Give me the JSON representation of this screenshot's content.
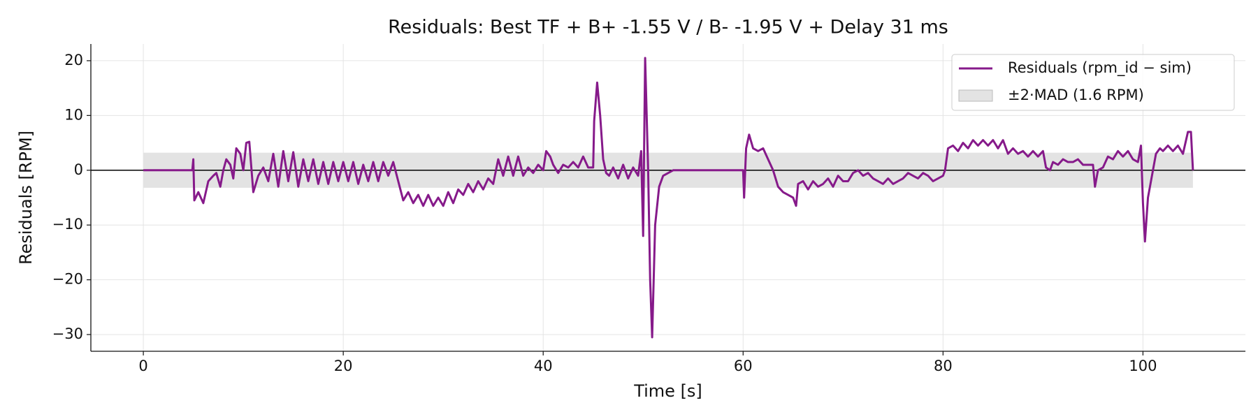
{
  "chart_data": {
    "type": "line",
    "title": "Residuals: Best TF + B+ -1.55 V / B- -1.95 V + Delay 31 ms",
    "xlabel": "Time [s]",
    "ylabel": "Residuals [RPM]",
    "xlim": [
      -5.25,
      110.25
    ],
    "ylim": [
      -33.05,
      23.05
    ],
    "xticks": [
      0,
      20,
      40,
      60,
      80,
      100
    ],
    "yticks": [
      {
        "value": -30,
        "label": "−30"
      },
      {
        "value": -20,
        "label": "−20"
      },
      {
        "value": -10,
        "label": "−10"
      },
      0,
      10,
      20
    ],
    "grid": true,
    "legend": "upper right",
    "hline": 0,
    "band": {
      "name": "±2·MAD (1.6 RPM)",
      "lower": -3.2,
      "upper": 3.2,
      "x": [
        0,
        105
      ],
      "color": "#e3e3e3"
    },
    "x": [
      0,
      4.8,
      4.9,
      5.0,
      5.1,
      5.5,
      6,
      6.5,
      7,
      7.3,
      7.7,
      8,
      8.3,
      8.7,
      9,
      9.3,
      9.7,
      10,
      10.3,
      10.6,
      11,
      11.5,
      12,
      12.5,
      13,
      13.5,
      14,
      14.5,
      15,
      15.5,
      16,
      16.5,
      17,
      17.5,
      18,
      18.5,
      19,
      19.5,
      20,
      20.5,
      21,
      21.5,
      22,
      22.5,
      23,
      23.5,
      24,
      24.5,
      25,
      25.5,
      26,
      26.5,
      27,
      27.5,
      28,
      28.5,
      29,
      29.5,
      30,
      30.5,
      31,
      31.5,
      32,
      32.5,
      33,
      33.5,
      34,
      34.5,
      35,
      35.5,
      36,
      36.5,
      37,
      37.5,
      38,
      38.5,
      39,
      39.5,
      40,
      40.3,
      40.7,
      41,
      41.5,
      42,
      42.5,
      43,
      43.5,
      44,
      44.5,
      45,
      45.1,
      45.4,
      45.7,
      46,
      46.3,
      46.6,
      47,
      47.5,
      48,
      48.5,
      49,
      49.5,
      49.8,
      50,
      50.2,
      50.5,
      50.7,
      50.9,
      51.2,
      51.6,
      52,
      53,
      60,
      60.1,
      60.3,
      60.6,
      61,
      61.5,
      62,
      62.5,
      63,
      63.5,
      64,
      64.5,
      65,
      65.3,
      65.5,
      66,
      66.5,
      67,
      67.5,
      68,
      68.5,
      69,
      69.5,
      70,
      70.5,
      71,
      71.5,
      72,
      72.5,
      73,
      73.5,
      74,
      74.5,
      75,
      75.5,
      76,
      76.5,
      77,
      77.5,
      78,
      78.5,
      79,
      79.5,
      80,
      80.2,
      80.5,
      81,
      81.5,
      82,
      82.5,
      83,
      83.5,
      84,
      84.5,
      85,
      85.5,
      86,
      86.5,
      87,
      87.5,
      88,
      88.5,
      89,
      89.5,
      90,
      90.3,
      90.7,
      91,
      91.5,
      92,
      92.5,
      93,
      93.5,
      94,
      95,
      95.2,
      95.5,
      96,
      96.5,
      97,
      97.5,
      98,
      98.5,
      99,
      99.5,
      99.8,
      100,
      100.2,
      100.5,
      100.8,
      101,
      101.3,
      101.7,
      102,
      102.5,
      103,
      103.5,
      104,
      104.5,
      104.8,
      105
    ],
    "series": [
      {
        "name": "Residuals (rpm_id − sim)",
        "color": "#861a8a",
        "values": [
          0,
          0,
          0,
          2,
          -5.5,
          -4,
          -6,
          -2,
          -1,
          -0.5,
          -3,
          0,
          2,
          1,
          -1.5,
          4,
          3,
          0,
          5,
          5.2,
          -4,
          -1,
          0.5,
          -2,
          3,
          -3,
          3.5,
          -2,
          3.3,
          -3,
          2,
          -2,
          2,
          -2.5,
          1.5,
          -2.5,
          1.5,
          -2,
          1.5,
          -2,
          1.5,
          -2.5,
          1,
          -2,
          1.5,
          -2,
          1.5,
          -1,
          1.5,
          -2,
          -5.5,
          -4,
          -6,
          -4.5,
          -6.5,
          -4.5,
          -6.5,
          -5,
          -6.5,
          -4,
          -6,
          -3.5,
          -4.5,
          -2.5,
          -4,
          -2,
          -3.5,
          -1.5,
          -2.5,
          2,
          -1,
          2.5,
          -1,
          2.5,
          -1,
          0.5,
          -0.5,
          1,
          0,
          3.5,
          2.5,
          1,
          -0.5,
          1,
          0.5,
          1.5,
          0.5,
          2.5,
          0.5,
          0.5,
          9,
          16,
          10,
          2,
          -0.5,
          -1,
          0.5,
          -1.5,
          1,
          -1.5,
          0.5,
          -1,
          3.5,
          -12,
          20.5,
          0,
          -20,
          -30.5,
          -10,
          -3,
          -1,
          0,
          0,
          -5,
          4,
          6.5,
          4,
          3.5,
          4,
          2,
          0,
          -3,
          -4,
          -4.5,
          -5,
          -6.5,
          -2.5,
          -2,
          -3.5,
          -2,
          -3,
          -2.5,
          -1.5,
          -3,
          -1,
          -2,
          -2,
          -0.5,
          0,
          -1,
          -0.5,
          -1.5,
          -2,
          -2.5,
          -1.5,
          -2.5,
          -2,
          -1.5,
          -0.5,
          -1,
          -1.5,
          -0.5,
          -1,
          -2,
          -1.5,
          -1,
          0,
          4,
          4.5,
          3.5,
          5,
          4,
          5.5,
          4.5,
          5.5,
          4.5,
          5.5,
          4,
          5.5,
          3,
          4,
          3,
          3.5,
          2.5,
          3.5,
          2.5,
          3.5,
          0.5,
          0,
          1.5,
          1,
          2,
          1.5,
          1.5,
          2,
          1,
          1,
          -3,
          0,
          0.5,
          2.5,
          2,
          3.5,
          2.5,
          3.5,
          2,
          1.5,
          4.5,
          -6,
          -13,
          -5,
          -2,
          0,
          3,
          4,
          3.5,
          4.5,
          3.5,
          4.5,
          3,
          7,
          7,
          0
        ]
      }
    ]
  }
}
